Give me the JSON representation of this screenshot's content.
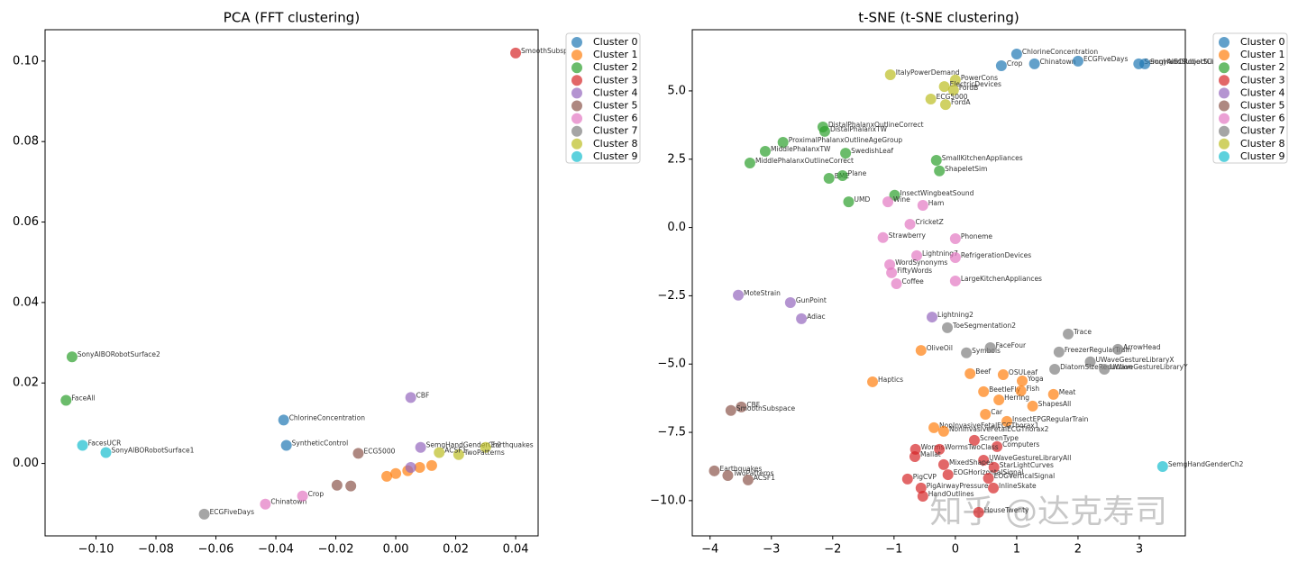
{
  "chart_data": [
    {
      "type": "scatter",
      "title": "PCA (FFT clustering)",
      "xlim": [
        -0.117,
        0.0475
      ],
      "ylim": [
        -0.018,
        0.1078
      ],
      "xticks": [
        {
          "value": -0.1,
          "label": "−0.10"
        },
        {
          "value": -0.08,
          "label": "−0.08"
        },
        {
          "value": -0.06,
          "label": "−0.06"
        },
        {
          "value": -0.04,
          "label": "−0.04"
        },
        {
          "value": -0.02,
          "label": "−0.02"
        },
        {
          "value": 0,
          "label": "0.00"
        },
        {
          "value": 0.02,
          "label": "0.02"
        },
        {
          "value": 0.04,
          "label": "0.04"
        }
      ],
      "yticks": [
        {
          "value": 0,
          "label": "0.00"
        },
        {
          "value": 0.02,
          "label": "0.02"
        },
        {
          "value": 0.04,
          "label": "0.04"
        },
        {
          "value": 0.06,
          "label": "0.06"
        },
        {
          "value": 0.08,
          "label": "0.08"
        },
        {
          "value": 0.1,
          "label": "0.10"
        }
      ],
      "legend": "upper right outside",
      "series": [
        {
          "name": "Cluster 0",
          "color": "#1f77b4",
          "x": [
            -0.0374,
            -0.0365
          ],
          "y": [
            0.0108,
            0.0045
          ],
          "labels": [
            "ChlorineConcentration",
            "SyntheticControl"
          ]
        },
        {
          "name": "Cluster 1",
          "color": "#ff7f0e",
          "x": [
            0.0,
            -0.003,
            0.004,
            0.008,
            0.012
          ],
          "y": [
            -0.0025,
            -0.0032,
            -0.0018,
            -0.001,
            -0.0005
          ],
          "labels": [
            null,
            null,
            null,
            null,
            null
          ]
        },
        {
          "name": "Cluster 2",
          "color": "#2ca02c",
          "x": [
            -0.108,
            -0.11
          ],
          "y": [
            0.0265,
            0.0157
          ],
          "labels": [
            "SonyAIBORobotSurface2",
            "FaceAll"
          ]
        },
        {
          "name": "Cluster 3",
          "color": "#d62728",
          "x": [
            0.04
          ],
          "y": [
            0.102
          ],
          "labels": [
            "SmoothSubspace"
          ]
        },
        {
          "name": "Cluster 4",
          "color": "#9467bd",
          "x": [
            0.005,
            0.0083,
            0.005
          ],
          "y": [
            0.0164,
            0.004,
            -0.001
          ],
          "labels": [
            "CBF",
            "SemgHandGenderCh2",
            null
          ]
        },
        {
          "name": "Cluster 5",
          "color": "#8c564b",
          "x": [
            -0.0125,
            -0.0196,
            -0.015
          ],
          "y": [
            0.0025,
            -0.0054,
            -0.0056
          ],
          "labels": [
            "ECG5000",
            null,
            null
          ]
        },
        {
          "name": "Cluster 6",
          "color": "#e377c2",
          "x": [
            -0.0435,
            -0.0311
          ],
          "y": [
            -0.0101,
            -0.0081
          ],
          "labels": [
            "Chinatown",
            "Crop"
          ]
        },
        {
          "name": "Cluster 7",
          "color": "#7f7f7f",
          "x": [
            -0.0639
          ],
          "y": [
            -0.0126
          ],
          "labels": [
            "ECGFiveDays"
          ]
        },
        {
          "name": "Cluster 8",
          "color": "#bcbd22",
          "x": [
            0.03,
            0.021,
            0.0145
          ],
          "y": [
            0.004,
            0.0022,
            0.0027
          ],
          "labels": [
            "Earthquakes",
            "TwoPatterns",
            "ACSF1"
          ]
        },
        {
          "name": "Cluster 9",
          "color": "#17becf",
          "x": [
            -0.1045,
            -0.0967
          ],
          "y": [
            0.0045,
            0.0027
          ],
          "labels": [
            "FacesUCR",
            "SonyAIBORobotSurface1"
          ]
        }
      ]
    },
    {
      "type": "scatter",
      "title": "t-SNE (t-SNE clustering)",
      "xlim": [
        -4.29,
        3.75
      ],
      "ylim": [
        -11.29,
        7.24
      ],
      "xticks": [
        {
          "value": -4,
          "label": "−4"
        },
        {
          "value": -3,
          "label": "−3"
        },
        {
          "value": -2,
          "label": "−2"
        },
        {
          "value": -1,
          "label": "−1"
        },
        0,
        1,
        2,
        3
      ],
      "yticks": [
        {
          "value": -10,
          "label": "−10.0"
        },
        {
          "value": -7.5,
          "label": "−7.5"
        },
        {
          "value": -5,
          "label": "−5.0"
        },
        {
          "value": -2.5,
          "label": "−2.5"
        },
        {
          "value": 0,
          "label": "0.0"
        },
        2.5,
        {
          "value": 5,
          "label": "5.0"
        }
      ],
      "legend": "upper right outside",
      "watermark": "知乎 @达克寿司",
      "series": [
        {
          "name": "Cluster 0",
          "color": "#1f77b4",
          "x": [
            1.0,
            0.75,
            1.29,
            2.0,
            2.99,
            3.09
          ],
          "y": [
            6.35,
            5.92,
            5.99,
            6.09,
            5.99,
            5.99
          ],
          "labels": [
            "ChlorineConcentration",
            "Crop",
            "Chinatown",
            "ECGFiveDays",
            "SemgHandSubjectCh2",
            "SonyAIBORobotSurface2"
          ]
        },
        {
          "name": "Cluster 1",
          "color": "#ff7f0e",
          "x": [
            -0.56,
            -1.35,
            0.24,
            0.78,
            1.09,
            0.46,
            1.07,
            1.6,
            0.71,
            1.26,
            0.49,
            0.84,
            -0.35,
            -0.19
          ],
          "y": [
            -4.5,
            -5.65,
            -5.35,
            -5.39,
            -5.62,
            -6.01,
            -5.98,
            -6.11,
            -6.31,
            -6.54,
            -6.84,
            -7.1,
            -7.33,
            -7.46
          ],
          "labels": [
            "OliveOil",
            "Haptics",
            "Beef",
            "OSULeaf",
            "Yoga",
            "BeetleFly",
            "Fish",
            "Meat",
            "Herring",
            "ShapesAll",
            "Car",
            "InsectEPGRegularTrain",
            "NonInvasiveFetalECGThorax1",
            "NonInvasiveFetalECGThorax2"
          ]
        },
        {
          "name": "Cluster 2",
          "color": "#2ca02c",
          "x": [
            -2.16,
            -2.13,
            -2.81,
            -3.1,
            -3.35,
            -1.79,
            -0.31,
            -0.26,
            -2.06,
            -1.84,
            -1.74,
            -0.99
          ],
          "y": [
            3.68,
            3.52,
            3.12,
            2.79,
            2.36,
            2.72,
            2.46,
            2.07,
            1.8,
            1.9,
            0.94,
            1.18
          ],
          "labels": [
            "DistalPhalanxOutlineCorrect",
            "DistalPhalanxTW",
            "ProximalPhalanxOutlineAgeGroup",
            "MiddlePhalanxTW",
            "MiddlePhalanxOutlineCorrect",
            "SwedishLeaf",
            "SmallKitchenAppliances",
            "ShapeletSim",
            "BME",
            "Plane",
            "UMD",
            "InsectWingbeatSound"
          ]
        },
        {
          "name": "Cluster 3",
          "color": "#d62728",
          "x": [
            0.31,
            0.68,
            -0.65,
            -0.26,
            -0.66,
            0.46,
            -0.19,
            0.63,
            -0.12,
            0.54,
            -0.78,
            -0.56,
            0.62,
            -0.53,
            0.38
          ],
          "y": [
            -7.79,
            -8.02,
            -8.12,
            -8.12,
            -8.39,
            -8.52,
            -8.68,
            -8.78,
            -9.05,
            -9.18,
            -9.21,
            -9.54,
            -9.54,
            -9.84,
            -10.43
          ],
          "labels": [
            "ScreenType",
            "Computers",
            "Worms",
            "WormsTwoClass",
            "Mallat",
            "UWaveGestureLibraryAll",
            "MixedShapes",
            "StarLightCurves",
            "EOGHorizontalSignal",
            "EOGVerticalSignal",
            "PigCVP",
            "PigAirwayPressure",
            "InlineSkate",
            "HandOutlines",
            "HouseTwenty"
          ]
        },
        {
          "name": "Cluster 4",
          "color": "#9467bd",
          "x": [
            -3.54,
            -2.69,
            -2.51,
            -0.38
          ],
          "y": [
            -2.48,
            -2.75,
            -3.34,
            -3.28
          ],
          "labels": [
            "MoteStrain",
            "GunPoint",
            "Adiac",
            "Lightning2"
          ]
        },
        {
          "name": "Cluster 5",
          "color": "#8c564b",
          "x": [
            -3.49,
            -3.66,
            -3.93,
            -3.71,
            -3.38
          ],
          "y": [
            -6.57,
            -6.7,
            -8.91,
            -9.08,
            -9.24
          ],
          "labels": [
            "CBF",
            "SmoothSubspace",
            "Earthquakes",
            "TwoPatterns",
            "ACSF1"
          ]
        },
        {
          "name": "Cluster 6",
          "color": "#e377c2",
          "x": [
            -1.1,
            -0.53,
            -0.74,
            -1.18,
            0.0,
            -0.63,
            0.0,
            -1.07,
            -1.04,
            -0.96,
            0.0
          ],
          "y": [
            0.94,
            0.81,
            0.12,
            -0.37,
            -0.41,
            -1.03,
            -1.1,
            -1.36,
            -1.66,
            -2.06,
            -1.96
          ],
          "labels": [
            "Wine",
            "Ham",
            "CricketZ",
            "Strawberry",
            "Phoneme",
            "Lightning7",
            "RefrigerationDevices",
            "WordSynonyms",
            "FiftyWords",
            "Coffee",
            "LargeKitchenAppliances"
          ]
        },
        {
          "name": "Cluster 7",
          "color": "#7f7f7f",
          "x": [
            -0.13,
            1.84,
            0.18,
            0.57,
            1.69,
            2.65,
            2.2,
            1.62,
            2.43
          ],
          "y": [
            -3.67,
            -3.9,
            -4.59,
            -4.4,
            -4.56,
            -4.46,
            -4.92,
            -5.19,
            -5.19
          ],
          "labels": [
            "ToeSegmentation2",
            "Trace",
            "Symbols",
            "FaceFour",
            "FreezerRegularTrain",
            "ArrowHead",
            "UWaveGestureLibraryX",
            "DiatomSizeReduction",
            "UWaveGestureLibraryY"
          ]
        },
        {
          "name": "Cluster 8",
          "color": "#bcbd22",
          "x": [
            -1.06,
            0.0,
            -0.18,
            -0.03,
            -0.4,
            -0.16
          ],
          "y": [
            5.59,
            5.4,
            5.16,
            5.03,
            4.7,
            4.5
          ],
          "labels": [
            "ItalyPowerDemand",
            "PowerCons",
            "ElectricDevices",
            "FordB",
            "ECG5000",
            "FordA"
          ]
        },
        {
          "name": "Cluster 9",
          "color": "#17becf",
          "x": [
            3.38
          ],
          "y": [
            -8.75
          ],
          "labels": [
            "SemgHandGenderCh2"
          ]
        }
      ]
    }
  ]
}
